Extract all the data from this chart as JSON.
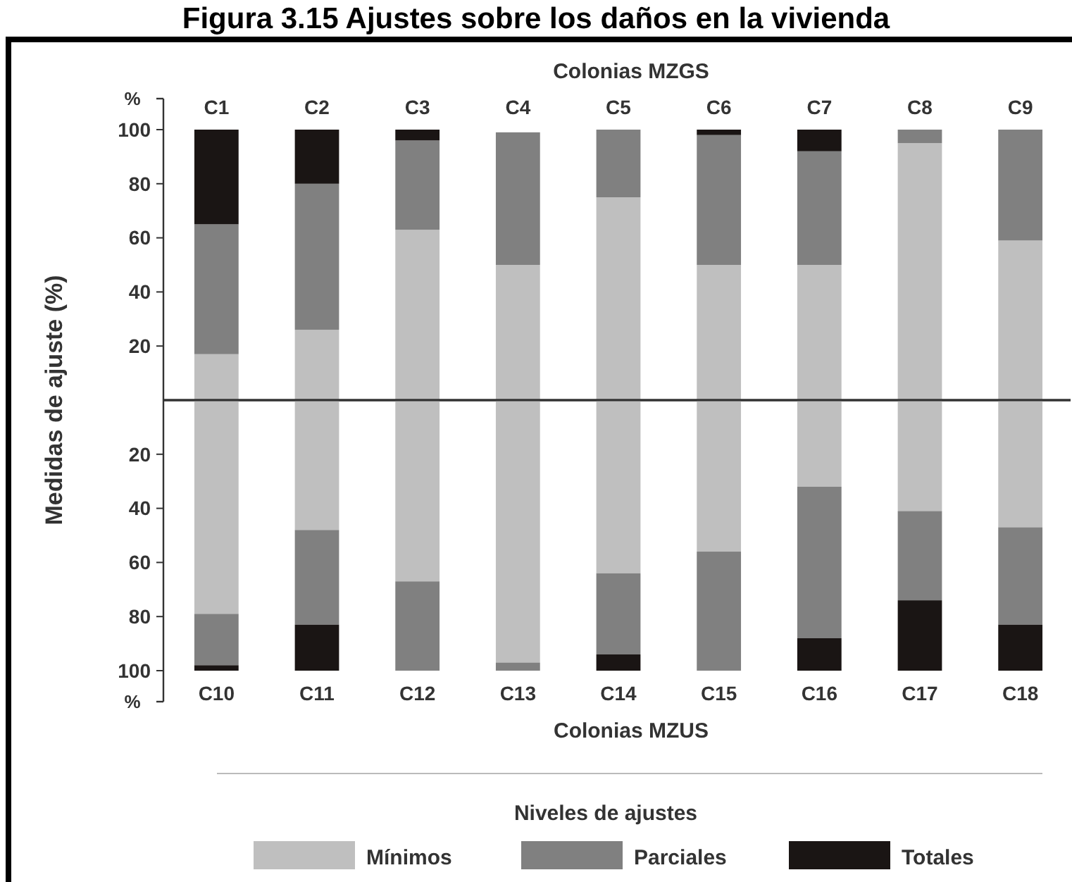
{
  "chart_data": [
    {
      "type": "bar",
      "stacked": true,
      "title": "Figura 3.15 Ajustes sobre los daños en la vivienda",
      "xlabel": "Colonias MZGS",
      "ylabel": "Medidas de ajuste (%)",
      "annotations": [
        "%"
      ],
      "categories": [
        "C1",
        "C2",
        "C3",
        "C4",
        "C5",
        "C6",
        "C7",
        "C8",
        "C9"
      ],
      "series": [
        {
          "color": "#bfbfbf",
          "values": [
            17,
            26,
            63,
            50,
            75,
            50,
            50,
            95,
            59
          ]
        },
        {
          "color": "#808080",
          "values": [
            48,
            54,
            33,
            49,
            25,
            48,
            42,
            5,
            41
          ]
        },
        {
          "color": "#1a1514",
          "values": [
            35,
            20,
            4,
            0,
            0,
            2,
            8,
            0,
            0
          ]
        }
      ],
      "ylim": [
        0,
        100
      ],
      "yticks": [
        20,
        40,
        60,
        80,
        100
      ],
      "legend": false
    },
    {
      "type": "bar",
      "stacked": true,
      "xlabel": "Colonias MZUS",
      "annotations": [
        "%"
      ],
      "categories": [
        "C10",
        "C11",
        "C12",
        "C13",
        "C14",
        "C15",
        "C16",
        "C17",
        "C18"
      ],
      "series": [
        {
          "name": "Mínimos",
          "color": "#bfbfbf",
          "values": [
            79,
            48,
            67,
            97,
            64,
            56,
            32,
            41,
            47
          ]
        },
        {
          "name": "Parciales",
          "color": "#808080",
          "values": [
            19,
            35,
            33,
            3,
            30,
            44,
            56,
            33,
            36
          ]
        },
        {
          "name": "Totales",
          "color": "#1a1514",
          "values": [
            2,
            17,
            0,
            0,
            6,
            0,
            12,
            26,
            17
          ]
        }
      ],
      "ylim": [
        100,
        0
      ],
      "yticks": [
        20,
        40,
        60,
        80,
        100
      ],
      "legend": "bottom",
      "legend_title": "Niveles de ajustes"
    }
  ]
}
